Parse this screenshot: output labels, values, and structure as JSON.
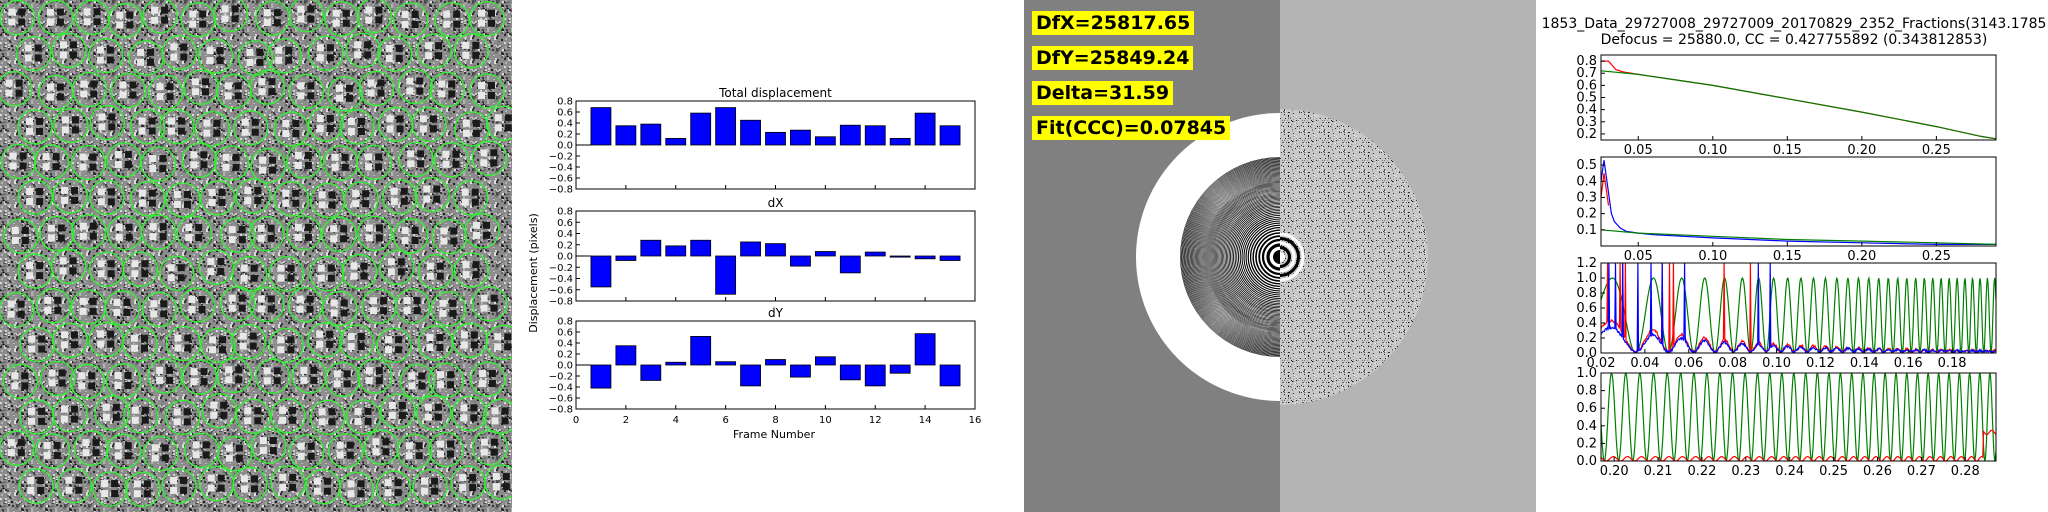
{
  "micrograph": {
    "particle_color": "#33ee33"
  },
  "drift": {
    "ylabel": "Displacement (pixels)",
    "xlabel": "Frame Number",
    "bar_color": "#0000ff",
    "x_ticks": [
      "0",
      "2",
      "4",
      "6",
      "8",
      "10",
      "12",
      "14",
      "16"
    ],
    "y_ticks": [
      "0.8",
      "0.6",
      "0.4",
      "0.2",
      "0.0",
      "−0.2",
      "−0.4",
      "−0.6",
      "−0.8"
    ]
  },
  "power_spectrum": {
    "labels": [
      {
        "text": "DfX=25817.65"
      },
      {
        "text": "DfY=25849.24"
      },
      {
        "text": "Delta=31.59"
      },
      {
        "text": "Fit(CCC)=0.07845"
      }
    ],
    "label_bg": "#ffff00"
  },
  "ctf_fit": {
    "title_line1": "1853_Data_29727008_29727009_20170829_2352_Fractions(3143.1785",
    "title_line2": "Defocus = 25880.0, CC = 0.427755892 (0.343812853)",
    "colors": {
      "red": "#ff0000",
      "green": "#008000",
      "blue": "#0000ff"
    }
  },
  "chart_data": [
    {
      "type": "bar",
      "title": "Total displacement",
      "x": [
        1,
        2,
        3,
        4,
        5,
        6,
        7,
        8,
        9,
        10,
        11,
        12,
        13,
        14,
        15
      ],
      "values": [
        0.68,
        0.35,
        0.38,
        0.12,
        0.58,
        0.68,
        0.45,
        0.23,
        0.27,
        0.15,
        0.36,
        0.35,
        0.12,
        0.58,
        0.35
      ],
      "xlim": [
        0,
        16
      ],
      "ylim": [
        -0.8,
        0.8
      ],
      "xlabel": "Frame Number",
      "ylabel": "Displacement (pixels)"
    },
    {
      "type": "bar",
      "title": "dX",
      "x": [
        1,
        2,
        3,
        4,
        5,
        6,
        7,
        8,
        9,
        10,
        11,
        12,
        13,
        14,
        15
      ],
      "values": [
        -0.55,
        -0.08,
        0.28,
        0.18,
        0.28,
        -0.68,
        0.25,
        0.22,
        -0.18,
        0.08,
        -0.3,
        0.07,
        -0.02,
        -0.05,
        -0.08
      ],
      "xlim": [
        0,
        16
      ],
      "ylim": [
        -0.8,
        0.8
      ]
    },
    {
      "type": "bar",
      "title": "dY",
      "x": [
        1,
        2,
        3,
        4,
        5,
        6,
        7,
        8,
        9,
        10,
        11,
        12,
        13,
        14,
        15
      ],
      "values": [
        -0.42,
        0.35,
        -0.28,
        0.05,
        0.52,
        0.06,
        -0.38,
        0.1,
        -0.22,
        0.15,
        -0.27,
        -0.38,
        -0.15,
        0.57,
        -0.38
      ],
      "xlim": [
        0,
        16
      ],
      "ylim": [
        -0.8,
        0.8
      ]
    },
    {
      "type": "line",
      "x_ticks": [
        "0.05",
        "0.10",
        "0.15",
        "0.20",
        "0.25"
      ],
      "y_ticks": [
        "0.8",
        "0.7",
        "0.6",
        "0.5",
        "0.4",
        "0.3",
        "0.2"
      ],
      "xlim": [
        0.025,
        0.29
      ],
      "ylim": [
        0.15,
        0.85
      ],
      "series": [
        {
          "color": "red",
          "x": [
            0.025,
            0.03,
            0.035,
            0.04,
            0.05,
            0.1,
            0.15,
            0.2,
            0.25,
            0.28,
            0.29
          ],
          "y": [
            0.8,
            0.8,
            0.73,
            0.71,
            0.69,
            0.6,
            0.49,
            0.38,
            0.26,
            0.18,
            0.16
          ]
        },
        {
          "color": "green",
          "x": [
            0.025,
            0.05,
            0.1,
            0.15,
            0.2,
            0.25,
            0.28,
            0.29
          ],
          "y": [
            0.72,
            0.69,
            0.6,
            0.49,
            0.38,
            0.26,
            0.18,
            0.16
          ]
        }
      ]
    },
    {
      "type": "line",
      "x_ticks": [
        "0.05",
        "0.10",
        "0.15",
        "0.20",
        "0.25"
      ],
      "y_ticks": [
        "0.5",
        "0.4",
        "0.3",
        "0.2",
        "0.1"
      ],
      "xlim": [
        0.025,
        0.29
      ],
      "ylim": [
        0,
        0.55
      ],
      "series": [
        {
          "color": "blue",
          "x": [
            0.025,
            0.027,
            0.03,
            0.032,
            0.034,
            0.038,
            0.042,
            0.05,
            0.06,
            0.08,
            0.1,
            0.15,
            0.2,
            0.25,
            0.29
          ],
          "y": [
            0.4,
            0.53,
            0.33,
            0.2,
            0.15,
            0.11,
            0.09,
            0.08,
            0.07,
            0.06,
            0.05,
            0.03,
            0.02,
            0.01,
            0.01
          ]
        },
        {
          "color": "red",
          "x": [
            0.025,
            0.027,
            0.03
          ],
          "y": [
            0.3,
            0.45,
            0.25
          ]
        },
        {
          "color": "green",
          "x": [
            0.025,
            0.05,
            0.1,
            0.15,
            0.2,
            0.25,
            0.29
          ],
          "y": [
            0.1,
            0.08,
            0.06,
            0.04,
            0.03,
            0.02,
            0.01
          ]
        }
      ]
    },
    {
      "type": "line",
      "x_ticks": [
        "0.02",
        "0.04",
        "0.06",
        "0.08",
        "0.10",
        "0.12",
        "0.14",
        "0.16",
        "0.18"
      ],
      "y_ticks": [
        "1.2",
        "1.0",
        "0.8",
        "0.6",
        "0.4",
        "0.2",
        "0.0"
      ],
      "xlim": [
        0.02,
        0.2
      ],
      "ylim": [
        0,
        1.2
      ],
      "series": [
        {
          "color": "green",
          "kind": "ctf"
        },
        {
          "color": "red",
          "kind": "fit"
        },
        {
          "color": "blue",
          "kind": "fit"
        }
      ]
    },
    {
      "type": "line",
      "x_ticks": [
        "0.20",
        "0.21",
        "0.22",
        "0.23",
        "0.24",
        "0.25",
        "0.26",
        "0.27",
        "0.28"
      ],
      "y_ticks": [
        "1.0",
        "0.8",
        "0.6",
        "0.4",
        "0.2",
        "0.0"
      ],
      "xlim": [
        0.197,
        0.287
      ],
      "ylim": [
        0,
        1.0
      ],
      "series": [
        {
          "color": "green",
          "kind": "ctf"
        },
        {
          "color": "red",
          "kind": "fit"
        }
      ]
    }
  ]
}
